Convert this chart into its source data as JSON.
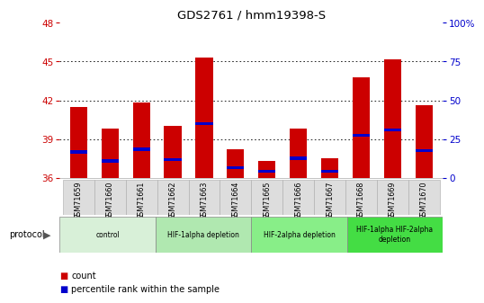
{
  "title": "GDS2761 / hmm19398-S",
  "samples": [
    "GSM71659",
    "GSM71660",
    "GSM71661",
    "GSM71662",
    "GSM71663",
    "GSM71664",
    "GSM71665",
    "GSM71666",
    "GSM71667",
    "GSM71668",
    "GSM71669",
    "GSM71670"
  ],
  "count_values": [
    41.5,
    39.8,
    41.8,
    40.0,
    45.3,
    38.2,
    37.3,
    39.8,
    37.5,
    43.8,
    45.2,
    41.6
  ],
  "percentile_values": [
    38.0,
    37.3,
    38.2,
    37.4,
    40.2,
    36.8,
    36.5,
    37.5,
    36.5,
    39.3,
    39.7,
    38.1
  ],
  "y_min": 36,
  "y_max": 48,
  "y_ticks": [
    36,
    39,
    42,
    45,
    48
  ],
  "y2_ticks_labels": [
    "0",
    "25",
    "50",
    "75",
    "100%"
  ],
  "y2_tick_positions": [
    36,
    39,
    42,
    45,
    48
  ],
  "bar_color": "#cc0000",
  "percentile_color": "#0000cc",
  "bar_width": 0.55,
  "pct_bar_height": 0.25,
  "groups": [
    {
      "label": "control",
      "start": 0,
      "end": 3,
      "color": "#d8f0d8"
    },
    {
      "label": "HIF-1alpha depletion",
      "start": 3,
      "end": 6,
      "color": "#b0e8b0"
    },
    {
      "label": "HIF-2alpha depletion",
      "start": 6,
      "end": 9,
      "color": "#88ee88"
    },
    {
      "label": "HIF-1alpha HIF-2alpha\ndepletion",
      "start": 9,
      "end": 12,
      "color": "#44dd44"
    }
  ],
  "protocol_label": "protocol",
  "legend_count_label": "count",
  "legend_percentile_label": "percentile rank within the sample",
  "tick_label_color": "#cc0000",
  "y2_label_color": "#0000cc",
  "grid_color": "#000000",
  "grid_yticks": [
    39,
    42,
    45
  ]
}
